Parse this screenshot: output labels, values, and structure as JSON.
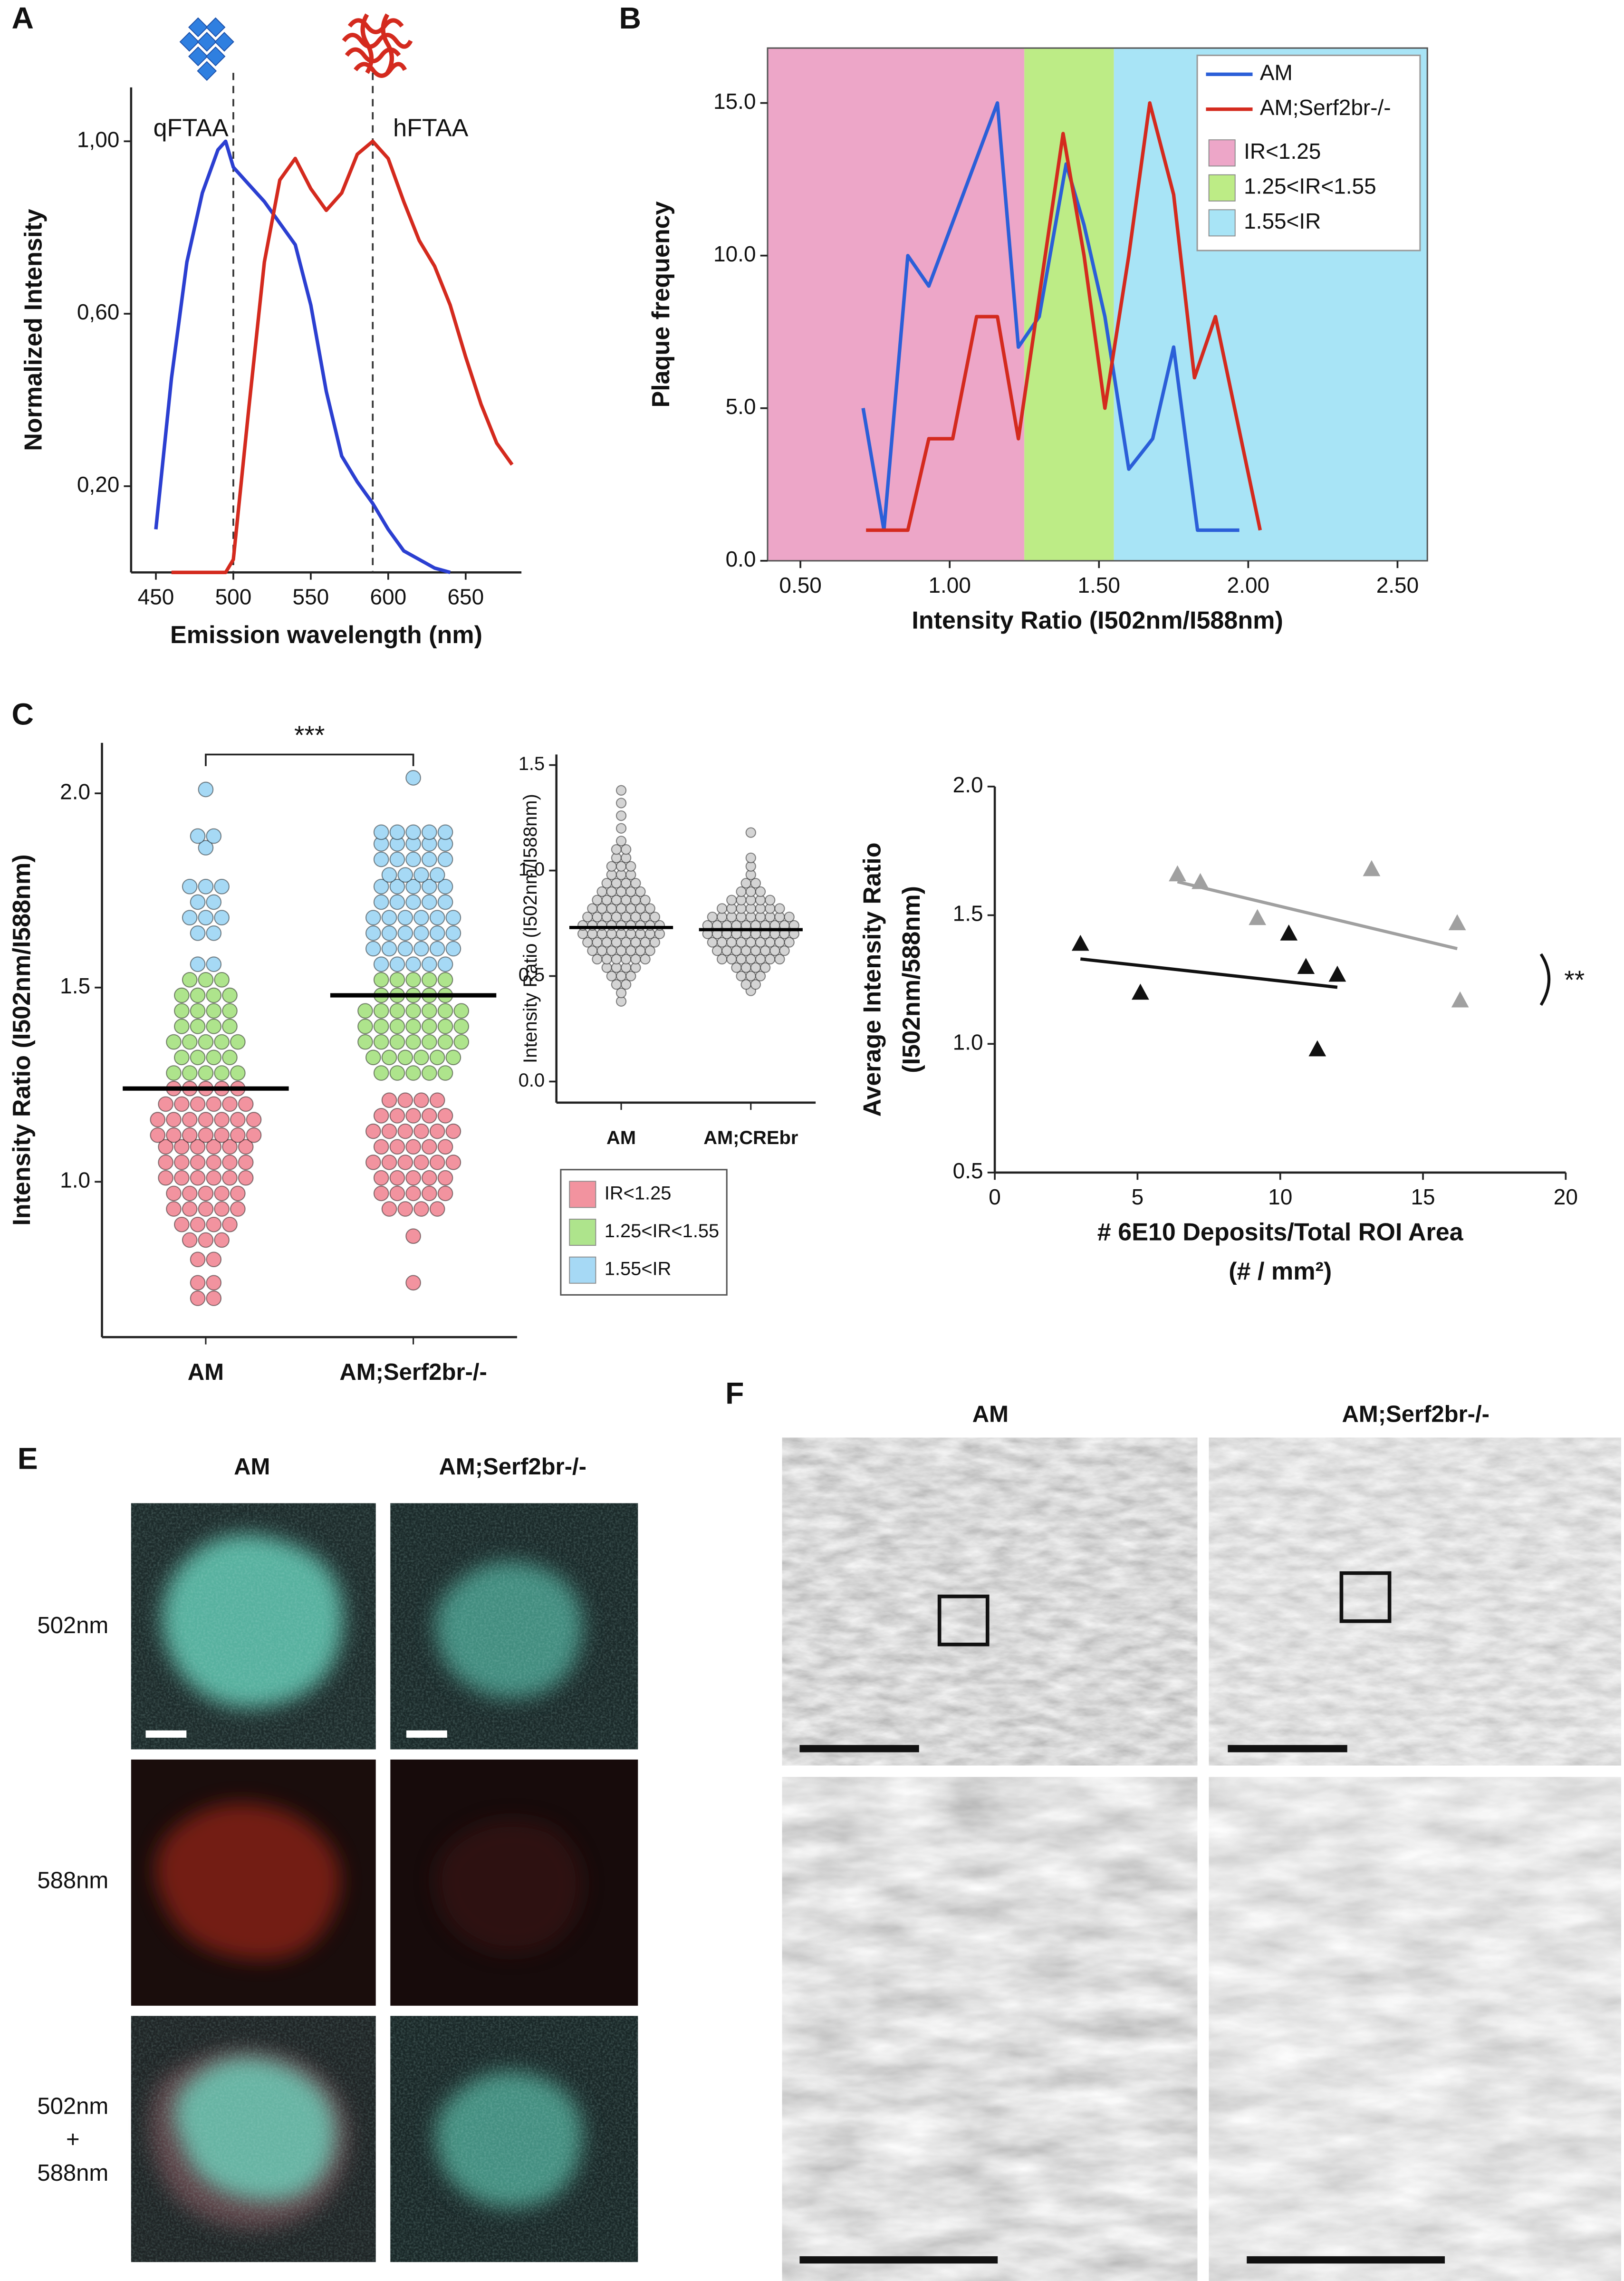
{
  "chart_data": [
    {
      "panel": "A",
      "type": "line",
      "xlabel": "Emission wavelength (nm)",
      "ylabel": "Normalized Intensity",
      "xlim": [
        434,
        686
      ],
      "ylim": [
        0,
        1.125
      ],
      "xticks": [
        450,
        500,
        550,
        600,
        650
      ],
      "yticks": [
        {
          "value": 0.2,
          "label": "0,20"
        },
        {
          "value": 0.6,
          "label": "0,60"
        },
        {
          "value": 1.0,
          "label": "1,00"
        }
      ],
      "vlines": [
        500,
        590
      ],
      "series": [
        {
          "name": "qFTAA",
          "color": "#2b3fd1",
          "x": [
            450,
            460,
            470,
            480,
            490,
            495,
            500,
            510,
            520,
            530,
            540,
            550,
            560,
            570,
            580,
            590,
            600,
            610,
            620,
            630,
            640
          ],
          "values": [
            0.1,
            0.45,
            0.72,
            0.88,
            0.98,
            1.0,
            0.94,
            0.9,
            0.86,
            0.81,
            0.76,
            0.62,
            0.42,
            0.27,
            0.21,
            0.16,
            0.1,
            0.05,
            0.03,
            0.01,
            0.0
          ]
        },
        {
          "name": "hFTAA",
          "color": "#d42a1e",
          "x": [
            460,
            480,
            495,
            500,
            510,
            520,
            530,
            540,
            550,
            560,
            570,
            580,
            590,
            600,
            610,
            620,
            630,
            640,
            650,
            660,
            670,
            680
          ],
          "values": [
            0,
            0,
            0,
            0.03,
            0.38,
            0.72,
            0.91,
            0.96,
            0.89,
            0.84,
            0.88,
            0.97,
            1.0,
            0.96,
            0.86,
            0.77,
            0.71,
            0.62,
            0.5,
            0.39,
            0.3,
            0.25
          ]
        }
      ]
    },
    {
      "panel": "B",
      "type": "line",
      "xlabel": "Intensity Ratio (I502nm/I588nm)",
      "ylabel": "Plaque frequency",
      "xlim": [
        0.39,
        2.6
      ],
      "ylim": [
        0,
        16.8
      ],
      "xticks": [
        {
          "value": 0.5,
          "label": "0.50"
        },
        {
          "value": 1.0,
          "label": "1.00"
        },
        {
          "value": 1.5,
          "label": "1.50"
        },
        {
          "value": 2.0,
          "label": "2.00"
        },
        {
          "value": 2.5,
          "label": "2.50"
        }
      ],
      "yticks": [
        {
          "value": 0,
          "label": "0.0"
        },
        {
          "value": 5,
          "label": "5.0"
        },
        {
          "value": 10,
          "label": "10.0"
        },
        {
          "value": 15,
          "label": "15.0"
        }
      ],
      "region_bounds": [
        1.25,
        1.55
      ],
      "regions": [
        {
          "name": "IR<1.25",
          "color": "#eda6c8"
        },
        {
          "name": "1.25<IR<1.55",
          "color": "#bdec86"
        },
        {
          "name": "1.55<IR",
          "color": "#a8e4f6"
        }
      ],
      "legend": "upper right",
      "series": [
        {
          "name": "AM",
          "color": "#2b5fd8",
          "x": [
            0.71,
            0.78,
            0.86,
            0.93,
            1.16,
            1.23,
            1.3,
            1.39,
            1.45,
            1.52,
            1.6,
            1.68,
            1.75,
            1.83,
            1.97
          ],
          "values": [
            5,
            1,
            10,
            9,
            15,
            7,
            8,
            13,
            11,
            8,
            3,
            4,
            7,
            1,
            1
          ]
        },
        {
          "name": "AM;Serf2br-/-",
          "color": "#d42a1e",
          "x": [
            0.72,
            0.86,
            0.93,
            1.01,
            1.09,
            1.16,
            1.23,
            1.38,
            1.45,
            1.52,
            1.6,
            1.67,
            1.75,
            1.82,
            1.89,
            2.04
          ],
          "values": [
            1,
            1,
            4,
            4,
            8,
            8,
            4,
            14,
            10,
            5,
            10,
            15,
            12,
            6,
            8,
            1
          ]
        }
      ]
    },
    {
      "panel": "C",
      "type": "strip",
      "ylabel": "Intensity Ratio (I502nm/I588nm)",
      "ylim": [
        0.6,
        2.13
      ],
      "yticks": [
        {
          "value": 1.0,
          "label": "1.0"
        },
        {
          "value": 1.5,
          "label": "1.5"
        },
        {
          "value": 2.0,
          "label": "2.0"
        }
      ],
      "categories": [
        "AM",
        "AM;Serf2br-/-"
      ],
      "region_bounds": [
        1.25,
        1.55
      ],
      "regions": [
        {
          "name": "IR<1.25",
          "color": "#f2939f"
        },
        {
          "name": "1.25<IR<1.55",
          "color": "#aee48c"
        },
        {
          "name": "1.55<IR",
          "color": "#a6d9f5"
        }
      ],
      "legend": "right",
      "significance": "***",
      "series": [
        {
          "mean": 1.24,
          "values": [
            0.7,
            0.7,
            0.74,
            0.74,
            0.8,
            0.8,
            0.85,
            0.85,
            0.85,
            0.89,
            0.89,
            0.89,
            0.89,
            0.93,
            0.93,
            0.93,
            0.93,
            0.93,
            0.97,
            0.97,
            0.97,
            0.97,
            0.97,
            1.01,
            1.01,
            1.01,
            1.01,
            1.01,
            1.01,
            1.05,
            1.05,
            1.05,
            1.05,
            1.05,
            1.05,
            1.09,
            1.09,
            1.09,
            1.09,
            1.09,
            1.09,
            1.12,
            1.12,
            1.12,
            1.12,
            1.12,
            1.12,
            1.12,
            1.16,
            1.16,
            1.16,
            1.16,
            1.16,
            1.16,
            1.16,
            1.2,
            1.2,
            1.2,
            1.2,
            1.2,
            1.2,
            1.24,
            1.24,
            1.24,
            1.24,
            1.24,
            1.28,
            1.28,
            1.28,
            1.28,
            1.28,
            1.32,
            1.32,
            1.32,
            1.32,
            1.36,
            1.36,
            1.36,
            1.36,
            1.36,
            1.4,
            1.4,
            1.4,
            1.4,
            1.44,
            1.44,
            1.44,
            1.44,
            1.48,
            1.48,
            1.48,
            1.48,
            1.52,
            1.52,
            1.52,
            1.56,
            1.56,
            1.64,
            1.64,
            1.68,
            1.68,
            1.68,
            1.72,
            1.72,
            1.76,
            1.76,
            1.76,
            1.86,
            1.89,
            1.89,
            2.01
          ]
        },
        {
          "mean": 1.48,
          "values": [
            0.74,
            0.86,
            0.93,
            0.93,
            0.93,
            0.93,
            0.97,
            0.97,
            0.97,
            0.97,
            0.97,
            1.01,
            1.01,
            1.01,
            1.01,
            1.01,
            1.05,
            1.05,
            1.05,
            1.05,
            1.05,
            1.05,
            1.09,
            1.09,
            1.09,
            1.09,
            1.09,
            1.13,
            1.13,
            1.13,
            1.13,
            1.13,
            1.13,
            1.17,
            1.17,
            1.17,
            1.17,
            1.17,
            1.21,
            1.21,
            1.21,
            1.21,
            1.28,
            1.28,
            1.28,
            1.28,
            1.28,
            1.32,
            1.32,
            1.32,
            1.32,
            1.32,
            1.32,
            1.36,
            1.36,
            1.36,
            1.36,
            1.36,
            1.36,
            1.36,
            1.4,
            1.4,
            1.4,
            1.4,
            1.4,
            1.4,
            1.4,
            1.44,
            1.44,
            1.44,
            1.44,
            1.44,
            1.44,
            1.44,
            1.48,
            1.48,
            1.48,
            1.48,
            1.48,
            1.52,
            1.52,
            1.52,
            1.52,
            1.52,
            1.56,
            1.56,
            1.56,
            1.56,
            1.56,
            1.6,
            1.6,
            1.6,
            1.6,
            1.6,
            1.6,
            1.64,
            1.64,
            1.64,
            1.64,
            1.64,
            1.64,
            1.68,
            1.68,
            1.68,
            1.68,
            1.68,
            1.68,
            1.72,
            1.72,
            1.72,
            1.72,
            1.72,
            1.76,
            1.76,
            1.76,
            1.76,
            1.76,
            1.79,
            1.79,
            1.79,
            1.79,
            1.83,
            1.83,
            1.83,
            1.83,
            1.83,
            1.87,
            1.87,
            1.87,
            1.87,
            1.87,
            1.9,
            1.9,
            1.9,
            1.9,
            1.9,
            2.04
          ]
        }
      ]
    },
    {
      "type": "strip",
      "ylabel": "Intensity Ratio (I502nm/I588nm)",
      "ylim": [
        -0.1,
        1.55
      ],
      "yticks": [
        {
          "value": 0,
          "label": "0.0"
        },
        {
          "value": 0.5,
          "label": "0.5"
        },
        {
          "value": 1.0,
          "label": "1.0"
        },
        {
          "value": 1.5,
          "label": "1.5"
        }
      ],
      "categories": [
        "AM",
        "AM;CREbr"
      ],
      "color": "#d4d4d4",
      "series": [
        {
          "mean": 0.73,
          "values": [
            0.38,
            0.42,
            0.46,
            0.46,
            0.5,
            0.5,
            0.5,
            0.54,
            0.54,
            0.54,
            0.54,
            0.58,
            0.58,
            0.58,
            0.58,
            0.58,
            0.58,
            0.62,
            0.62,
            0.62,
            0.62,
            0.62,
            0.62,
            0.62,
            0.66,
            0.66,
            0.66,
            0.66,
            0.66,
            0.66,
            0.66,
            0.66,
            0.7,
            0.7,
            0.7,
            0.7,
            0.7,
            0.7,
            0.7,
            0.7,
            0.7,
            0.74,
            0.74,
            0.74,
            0.74,
            0.74,
            0.74,
            0.74,
            0.74,
            0.74,
            0.78,
            0.78,
            0.78,
            0.78,
            0.78,
            0.78,
            0.78,
            0.78,
            0.82,
            0.82,
            0.82,
            0.82,
            0.82,
            0.82,
            0.82,
            0.86,
            0.86,
            0.86,
            0.86,
            0.86,
            0.86,
            0.9,
            0.9,
            0.9,
            0.9,
            0.9,
            0.94,
            0.94,
            0.94,
            0.94,
            0.98,
            0.98,
            0.98,
            1.02,
            1.02,
            1.02,
            1.06,
            1.06,
            1.1,
            1.1,
            1.14,
            1.2,
            1.26,
            1.32,
            1.38
          ]
        },
        {
          "mean": 0.72,
          "values": [
            0.43,
            0.46,
            0.46,
            0.5,
            0.5,
            0.5,
            0.54,
            0.54,
            0.54,
            0.54,
            0.58,
            0.58,
            0.58,
            0.58,
            0.58,
            0.58,
            0.58,
            0.62,
            0.62,
            0.62,
            0.62,
            0.62,
            0.62,
            0.62,
            0.62,
            0.66,
            0.66,
            0.66,
            0.66,
            0.66,
            0.66,
            0.66,
            0.66,
            0.66,
            0.7,
            0.7,
            0.7,
            0.7,
            0.7,
            0.7,
            0.7,
            0.7,
            0.7,
            0.7,
            0.74,
            0.74,
            0.74,
            0.74,
            0.74,
            0.74,
            0.74,
            0.74,
            0.74,
            0.74,
            0.78,
            0.78,
            0.78,
            0.78,
            0.78,
            0.78,
            0.78,
            0.78,
            0.78,
            0.82,
            0.82,
            0.82,
            0.82,
            0.82,
            0.82,
            0.82,
            0.86,
            0.86,
            0.86,
            0.86,
            0.86,
            0.9,
            0.9,
            0.9,
            0.94,
            0.94,
            0.98,
            1.02,
            1.06,
            1.18
          ]
        }
      ]
    },
    {
      "type": "scatter",
      "xlabel": [
        "# 6E10 Deposits/Total ROI Area",
        "(# / mm²)"
      ],
      "ylabel": [
        "Average Intensity Ratio",
        "(I502nm/588nm)"
      ],
      "xlim": [
        0,
        20
      ],
      "ylim": [
        0.5,
        2.0
      ],
      "xticks": [
        0,
        5,
        10,
        15,
        20
      ],
      "yticks": [
        {
          "value": 0.5,
          "label": "0.5"
        },
        {
          "value": 1.0,
          "label": "1.0"
        },
        {
          "value": 1.5,
          "label": "1.5"
        },
        {
          "value": 2.0,
          "label": "2.0"
        }
      ],
      "annotation": "**",
      "series": [
        {
          "color": "#111111",
          "x": [
            3.0,
            5.1,
            10.3,
            10.9,
            12.0,
            11.3
          ],
          "values": [
            1.39,
            1.2,
            1.43,
            1.3,
            1.27,
            0.98
          ],
          "trend": {
            "x": [
              3.0,
              12.0
            ],
            "values": [
              1.33,
              1.22
            ]
          }
        },
        {
          "color": "#a0a0a0",
          "x": [
            6.4,
            7.2,
            9.2,
            13.2,
            16.2,
            16.3
          ],
          "values": [
            1.66,
            1.63,
            1.49,
            1.68,
            1.47,
            1.17
          ],
          "trend": {
            "x": [
              6.4,
              16.2
            ],
            "values": [
              1.63,
              1.37
            ]
          }
        }
      ]
    }
  ],
  "figure_panels": {
    "E": {
      "panel": "E",
      "columns": [
        "AM",
        "AM;Serf2br-/-"
      ],
      "rows": [
        [
          "502nm"
        ],
        [
          "588nm"
        ],
        [
          "502nm",
          "+",
          "588nm"
        ]
      ]
    },
    "F": {
      "panel": "F",
      "columns": [
        "AM",
        "AM;Serf2br-/-"
      ]
    }
  }
}
